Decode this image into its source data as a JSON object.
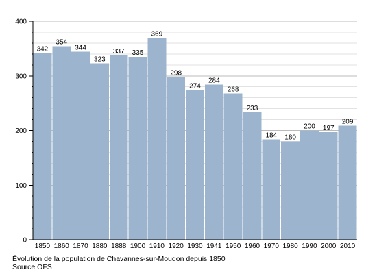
{
  "chart_data": {
    "type": "bar",
    "categories": [
      "1850",
      "1860",
      "1870",
      "1880",
      "1888",
      "1900",
      "1910",
      "1920",
      "1930",
      "1941",
      "1950",
      "1960",
      "1970",
      "1980",
      "1990",
      "2000",
      "2010"
    ],
    "values": [
      342,
      354,
      344,
      323,
      337,
      335,
      369,
      298,
      274,
      284,
      268,
      233,
      184,
      180,
      200,
      197,
      209
    ],
    "ylim": [
      0,
      400
    ],
    "yticks": [
      0,
      100,
      200,
      300,
      400
    ],
    "grid": true,
    "bar_color": "#9cb4ce",
    "grid_color": "#cccccc"
  },
  "caption": {
    "line1": "Évolution de la population de Chavannes-sur-Moudon depuis 1850",
    "line2": "Source OFS"
  }
}
